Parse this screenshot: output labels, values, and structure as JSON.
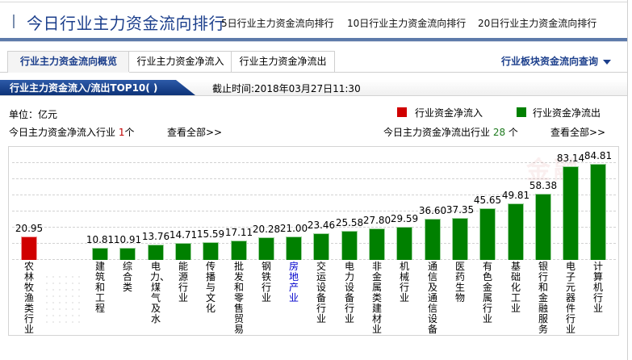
{
  "title": {
    "main": "今日行业主力资金流向排行",
    "links": [
      "5日行业主力资金流向排行",
      "10日行业主力资金流向排行",
      "20日行业主力资金流向排行"
    ]
  },
  "tabs": [
    {
      "label": "行业主力资金流向概览",
      "active": true
    },
    {
      "label": "行业主力资金净流入",
      "active": false
    },
    {
      "label": "行业主力资金净流出",
      "active": false
    }
  ],
  "query_link": "行业板块资金流向查询",
  "section": {
    "label": "行业主力资金流入/流出TOP10( )",
    "deadline": "截止时间:2018年03月27日11:30"
  },
  "info": {
    "unit": "单位：亿元",
    "inflow_prefix": "今日主力资金净流入行业 ",
    "inflow_count": "1",
    "inflow_suffix": "个",
    "outflow_prefix": "今日主力资金净流出行业 ",
    "outflow_count": "28",
    "outflow_suffix": " 个",
    "view_all": "查看全部>>"
  },
  "legend": {
    "inflow": {
      "label": "行业资金净流入",
      "color": "#d00000"
    },
    "outflow": {
      "label": "行业资金净流出",
      "color": "#008000"
    }
  },
  "chart_data": {
    "type": "bar",
    "title": "行业主力资金流入/流出TOP10",
    "unit": "亿元",
    "xlabel": "",
    "ylabel": "亿元",
    "grid": true,
    "categories": [
      "农林牧渔类行业",
      "建筑和工程",
      "综合类",
      "电力、煤气及水",
      "能源行业",
      "传播与文化",
      "批发和零售贸易",
      "钢铁行业",
      "房地产业",
      "交运设备行业",
      "电力设备行业",
      "非金属类建材业",
      "机械行业",
      "通信及通信设备",
      "医药生物",
      "有色金属行业",
      "基础化工业",
      "银行和金融服务",
      "电子元器件行业",
      "计算机行业"
    ],
    "series": [
      {
        "name": "行业资金净流入",
        "color": "#d00000",
        "values": [
          20.95,
          null,
          null,
          null,
          null,
          null,
          null,
          null,
          null,
          null,
          null,
          null,
          null,
          null,
          null,
          null,
          null,
          null,
          null,
          null
        ]
      },
      {
        "name": "行业资金净流出",
        "color": "#008000",
        "values": [
          null,
          10.81,
          10.91,
          13.76,
          14.71,
          15.59,
          17.11,
          20.28,
          21.0,
          23.46,
          25.58,
          27.8,
          29.59,
          36.6,
          37.35,
          45.65,
          49.81,
          58.38,
          83.14,
          84.81
        ]
      }
    ],
    "value_labels": [
      "20.95",
      "10.81",
      "10.91",
      "13.76",
      "14.71",
      "15.59",
      "17.11",
      "20.28",
      "21.00",
      "23.46",
      "25.58",
      "27.80",
      "29.59",
      "36.60",
      "37.35",
      "45.65",
      "49.81",
      "58.38",
      "83.14",
      "84.81"
    ],
    "ylim": [
      0,
      90
    ]
  }
}
